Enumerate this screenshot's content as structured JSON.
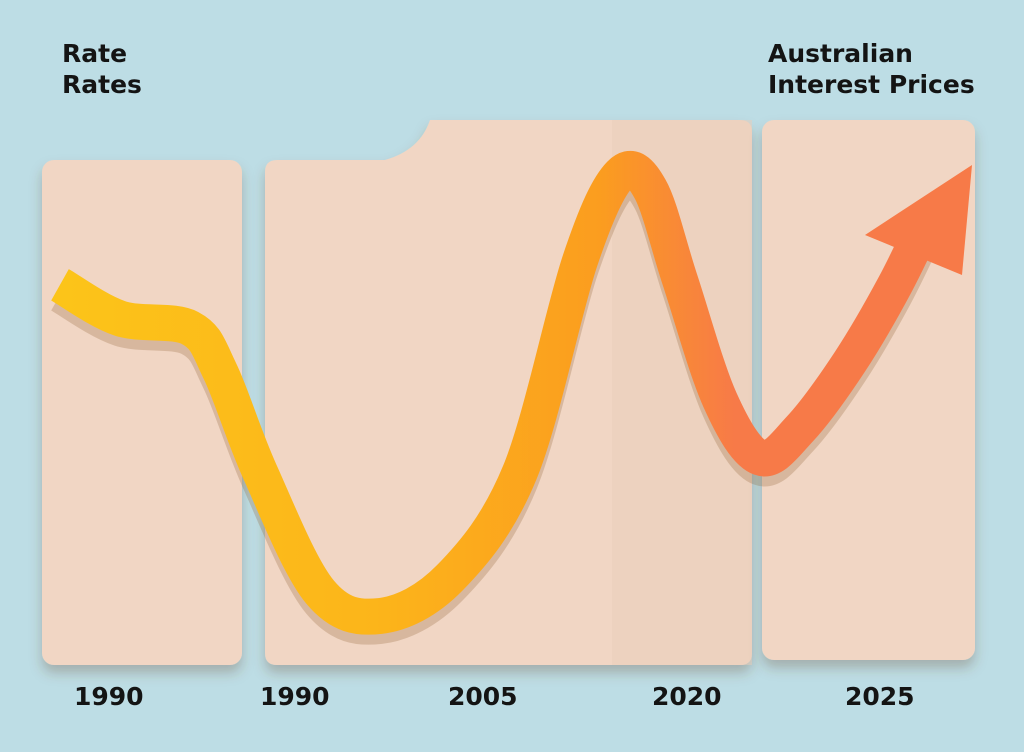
{
  "chart_data": {
    "type": "line",
    "title_left": [
      "Rate",
      "Rates"
    ],
    "title_right": [
      "Australian",
      "Interest Prices"
    ],
    "tick_labels": [
      "1990",
      "1990",
      "2005",
      "2020",
      "2025"
    ],
    "series": [
      {
        "relative_levels": [
          0.74,
          0.67,
          0.65,
          0.56,
          0.35,
          0.1,
          0.05,
          0.13,
          0.35,
          0.79,
          0.97,
          0.94,
          0.75,
          0.5,
          0.38,
          0.44,
          0.58,
          0.74,
          0.89
        ],
        "colors": [
          "#fcc419",
          "#fb9d1f",
          "#f77a48"
        ]
      }
    ],
    "panel_color": "#f1d6c4",
    "background": "#bddde5",
    "grid": false,
    "legend": "none"
  }
}
